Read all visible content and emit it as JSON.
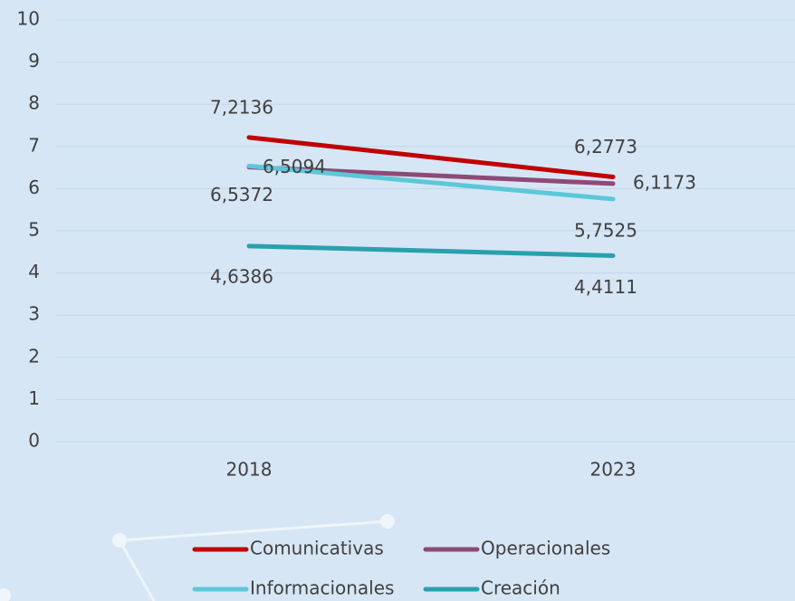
{
  "chart_data": {
    "type": "line",
    "categories": [
      "2018",
      "2023"
    ],
    "series": [
      {
        "name": "Comunicativas",
        "color": "#c00000",
        "values": [
          7.2136,
          6.2773
        ],
        "value_labels": [
          "7,2136",
          "6,2773"
        ]
      },
      {
        "name": "Operacionales",
        "color": "#8e4a76",
        "values": [
          6.5094,
          6.1173
        ],
        "value_labels": [
          "6,5094",
          "6,1173"
        ]
      },
      {
        "name": "Informacionales",
        "color": "#5bc8d9",
        "values": [
          6.5372,
          5.7525
        ],
        "value_labels": [
          "6,5372",
          "5,7525"
        ]
      },
      {
        "name": "Creación",
        "color": "#2aa0ad",
        "values": [
          4.6386,
          4.4111
        ],
        "value_labels": [
          "4,6386",
          "4,4111"
        ]
      }
    ],
    "ylim": [
      0,
      10
    ],
    "yticks": [
      0,
      1,
      2,
      3,
      4,
      5,
      6,
      7,
      8,
      9,
      10
    ],
    "grid": true
  }
}
